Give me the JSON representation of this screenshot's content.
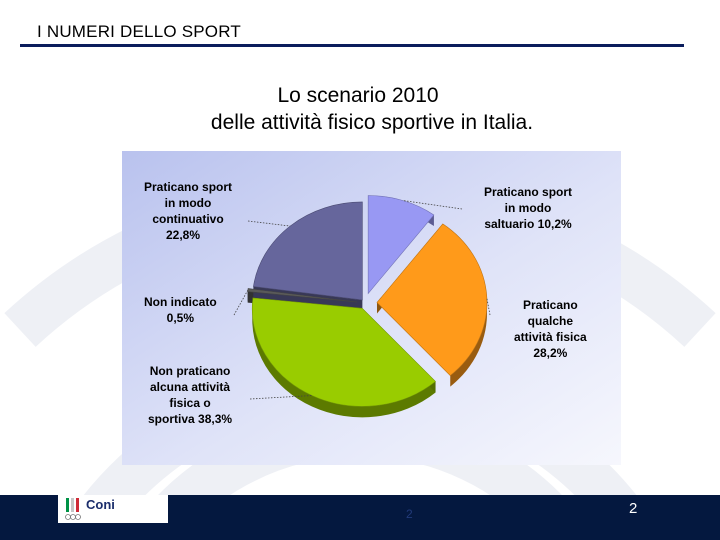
{
  "header": {
    "title": "I NUMERI DELLO SPORT"
  },
  "slide": {
    "title_line1": "Lo scenario 2010",
    "title_line2": "delle attività fisico sportive in Italia."
  },
  "chart_data": {
    "type": "pie",
    "title": "",
    "slices": [
      {
        "label": "Praticano sport in modo saltuario 10,2%",
        "value": 10.2,
        "color": "#9898f3"
      },
      {
        "label": "Praticano qualche attività fisica 28,2%",
        "value": 28.2,
        "color": "#ff9a1a"
      },
      {
        "label": "Non praticano alcuna attività fisica o sportiva 38,3%",
        "value": 38.3,
        "color": "#99cc00"
      },
      {
        "label": "Non indicato 0,5%",
        "value": 0.5,
        "color": "#5a5a5a"
      },
      {
        "label": "Praticano sport in modo continuativo 22,8%",
        "value": 22.8,
        "color": "#66669c"
      }
    ],
    "labels_text": {
      "saltuario": [
        "Praticano sport",
        "in modo",
        "saltuario 10,2%"
      ],
      "qualche": [
        "Praticano",
        "qualche",
        "attività fisica",
        "28,2%"
      ],
      "non_praticano": [
        "Non praticano",
        "alcuna attività",
        "fisica o",
        "sportiva 38,3%"
      ],
      "non_indicato": [
        "Non indicato",
        "0,5%"
      ],
      "continuativo": [
        "Praticano sport",
        "in modo",
        "continuativo",
        "22,8%"
      ]
    },
    "legend": "none",
    "style": "3d-exploded"
  },
  "footer": {
    "logo_text": "Coni",
    "page_number": "2",
    "page_number_dim": "2"
  },
  "colors": {
    "header_rule": "#0b1d5c",
    "footer_bar": "#04183f",
    "panel_gradient_start": "#b9c2ee",
    "panel_gradient_end": "#f4f6fd"
  }
}
